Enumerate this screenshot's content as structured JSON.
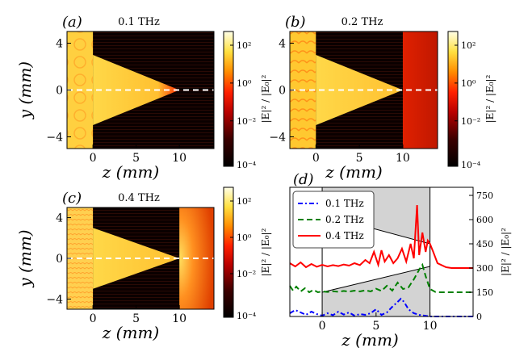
{
  "figure": {
    "colorbar_label": "|E|² / |E₀|²",
    "colorbar_ticks": [
      "10²",
      "10⁰",
      "10⁻²",
      "10⁻⁴"
    ],
    "x_label": "z (mm)",
    "y_label": "y (mm)"
  },
  "chart_data": [
    {
      "type": "heatmap",
      "panel_label": "(a)",
      "title": "0.1 THz",
      "frequency_thz": 0.1,
      "xlabel": "z (mm)",
      "ylabel": "y (mm)",
      "xlim": [
        -3,
        14
      ],
      "ylim": [
        -5,
        5
      ],
      "xticks": [
        "0",
        "5",
        "10"
      ],
      "yticks": [
        "4",
        "0",
        "−4"
      ],
      "colorbar_label": "|E|² / |E₀|²",
      "colorbar_ticks": [
        "10²",
        "10⁰",
        "10⁻²",
        "10⁻⁴"
      ],
      "colorscale": "log (hot)",
      "beam_axis": {
        "y": 0,
        "style": "white dashed"
      },
      "geometry": {
        "left_block_z": [
          -3,
          0
        ],
        "taper_from_z": 0,
        "taper_tip_z": 10,
        "taper_half_width_at_z0": 3
      },
      "output_region_intensity": "very low (dark)"
    },
    {
      "type": "heatmap",
      "panel_label": "(b)",
      "title": "0.2 THz",
      "frequency_thz": 0.2,
      "xlabel": "z (mm)",
      "ylabel": "y (mm)",
      "xlim": [
        -3,
        14
      ],
      "ylim": [
        -5,
        5
      ],
      "xticks": [
        "0",
        "5",
        "10"
      ],
      "yticks": [
        "4",
        "0",
        "−4"
      ],
      "colorbar_label": "|E|² / |E₀|²",
      "colorbar_ticks": [
        "10²",
        "10⁰",
        "10⁻²",
        "10⁻⁴"
      ],
      "colorscale": "log (hot)",
      "beam_axis": {
        "y": 0,
        "style": "white dashed"
      },
      "geometry": {
        "left_block_z": [
          -3,
          0
        ],
        "taper_from_z": 0,
        "taper_tip_z": 10,
        "taper_half_width_at_z0": 3
      },
      "output_region_intensity": "moderate (red), z > 10"
    },
    {
      "type": "heatmap",
      "panel_label": "(c)",
      "title": "0.4 THz",
      "frequency_thz": 0.4,
      "xlabel": "z (mm)",
      "ylabel": "y (mm)",
      "xlim": [
        -3,
        14
      ],
      "ylim": [
        -5,
        5
      ],
      "xticks": [
        "0",
        "5",
        "10"
      ],
      "yticks": [
        "4",
        "0",
        "−4"
      ],
      "colorbar_label": "|E|² / |E₀|²",
      "colorbar_ticks": [
        "10²",
        "10⁰",
        "10⁻²",
        "10⁻⁴"
      ],
      "colorscale": "log (hot)",
      "beam_axis": {
        "y": 0,
        "style": "white dashed"
      },
      "geometry": {
        "left_block_z": [
          -3,
          0
        ],
        "taper_from_z": 0,
        "taper_tip_z": 10,
        "taper_half_width_at_z0": 3
      },
      "output_region_intensity": "high (orange glow), z > 10"
    },
    {
      "type": "line",
      "panel_label": "(d)",
      "xlabel": "z (mm)",
      "ylabel": "|E|² / |E₀|²",
      "xlim": [
        -3,
        14
      ],
      "ylim": [
        0,
        800
      ],
      "xticks": [
        0,
        5,
        10
      ],
      "yticks": [
        0,
        150,
        300,
        450,
        600,
        750
      ],
      "yaxis_side": "right",
      "legend": "top-left",
      "grid": false,
      "shaded_region": {
        "z_from": 0,
        "z_to": 10,
        "color": "#d3d3d3"
      },
      "series": [
        {
          "name": "0.1 THz",
          "color": "#0000ff",
          "style": "dashdot",
          "baseline": 0,
          "x": [
            -3,
            -2.5,
            -2,
            -1.5,
            -1,
            -0.5,
            0,
            0.5,
            1,
            1.5,
            2,
            2.5,
            3,
            3.5,
            4,
            4.5,
            5,
            5.5,
            6,
            6.5,
            7,
            7.3,
            7.6,
            8,
            8.5,
            9,
            9.5,
            10,
            11,
            12,
            13,
            14
          ],
          "values": [
            20,
            40,
            25,
            10,
            30,
            15,
            5,
            20,
            8,
            30,
            12,
            25,
            5,
            15,
            10,
            20,
            45,
            10,
            25,
            60,
            90,
            110,
            90,
            45,
            20,
            10,
            5,
            0,
            0,
            0,
            0,
            0
          ]
        },
        {
          "name": "0.2 THz",
          "color": "#008000",
          "style": "dashed",
          "baseline": 150,
          "x": [
            -3,
            -2.7,
            -2.4,
            -2,
            -1.6,
            -1.2,
            -0.8,
            -0.4,
            0,
            0.5,
            1,
            1.5,
            2,
            2.5,
            3,
            3.5,
            4,
            4.5,
            5,
            5.5,
            6,
            6.5,
            7,
            7.5,
            8,
            8.5,
            9,
            9.3,
            9.6,
            10,
            10.5,
            11,
            12,
            13,
            14
          ],
          "values": [
            190,
            160,
            185,
            155,
            175,
            150,
            165,
            150,
            155,
            152,
            156,
            153,
            158,
            154,
            160,
            155,
            162,
            155,
            172,
            158,
            190,
            160,
            210,
            170,
            180,
            230,
            290,
            320,
            250,
            170,
            152,
            150,
            150,
            150,
            150
          ]
        },
        {
          "name": "0.4 THz",
          "color": "#ff0000",
          "style": "solid",
          "baseline": 300,
          "x": [
            -3,
            -2.5,
            -2,
            -1.5,
            -1,
            -0.5,
            0,
            0.5,
            1,
            1.5,
            2,
            2.5,
            3,
            3.5,
            4,
            4.4,
            4.8,
            5.2,
            5.5,
            5.8,
            6.2,
            6.6,
            7,
            7.4,
            7.8,
            8.2,
            8.5,
            8.8,
            9,
            9.3,
            9.6,
            9.8,
            10,
            10.3,
            10.7,
            11.5,
            12,
            13,
            14
          ],
          "values": [
            330,
            310,
            335,
            305,
            325,
            308,
            320,
            310,
            318,
            312,
            322,
            315,
            330,
            318,
            350,
            330,
            400,
            320,
            410,
            340,
            380,
            330,
            360,
            420,
            340,
            450,
            360,
            690,
            380,
            520,
            400,
            470,
            450,
            400,
            330,
            305,
            300,
            300,
            300
          ]
        }
      ]
    }
  ]
}
